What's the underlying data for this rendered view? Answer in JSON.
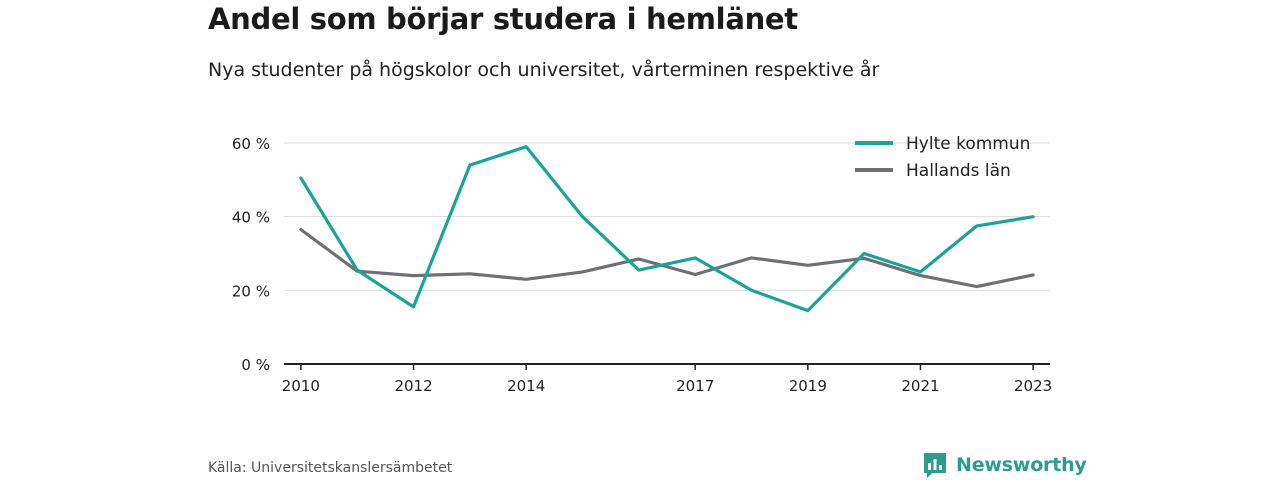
{
  "header": {
    "title": "Andel som börjar studera i hemlänet",
    "subtitle": "Nya studenter på högskolor och universitet, vårterminen respektive år"
  },
  "footer": {
    "source": "Källa: Universitetskanslersämbetet",
    "brand": "Newsworthy"
  },
  "colors": {
    "hylte": "#1aa39a",
    "halland": "#706f73",
    "grid": "#dddddd",
    "axis": "#222222",
    "brand": "#2a9d8f"
  },
  "chart_data": {
    "type": "line",
    "title": "Andel som börjar studera i hemlänet",
    "subtitle": "Nya studenter på högskolor och universitet, vårterminen respektive år",
    "x": [
      2010,
      2011,
      2012,
      2013,
      2014,
      2015,
      2016,
      2017,
      2018,
      2019,
      2020,
      2021,
      2022,
      2023
    ],
    "x_ticks": [
      2010,
      2012,
      2014,
      2017,
      2019,
      2021,
      2023
    ],
    "y_ticks": [
      0,
      20,
      40,
      60
    ],
    "y_tick_labels": [
      "0 %",
      "20 %",
      "40 %",
      "60 %"
    ],
    "ylim": [
      0,
      60
    ],
    "xlim": [
      2009.7,
      2023.3
    ],
    "grid": true,
    "legend_position": "top-right",
    "series": [
      {
        "name": "Hylte kommun",
        "color": "#1aa39a",
        "values": [
          50.5,
          25.5,
          15.5,
          54,
          59,
          40,
          25.5,
          28.8,
          20,
          14.5,
          30,
          25,
          37.5,
          40
        ]
      },
      {
        "name": "Hallands län",
        "color": "#706f73",
        "values": [
          36.5,
          25.2,
          24,
          24.5,
          23,
          25,
          28.5,
          24.3,
          28.8,
          26.8,
          28.7,
          24,
          21,
          24.2
        ]
      }
    ]
  }
}
